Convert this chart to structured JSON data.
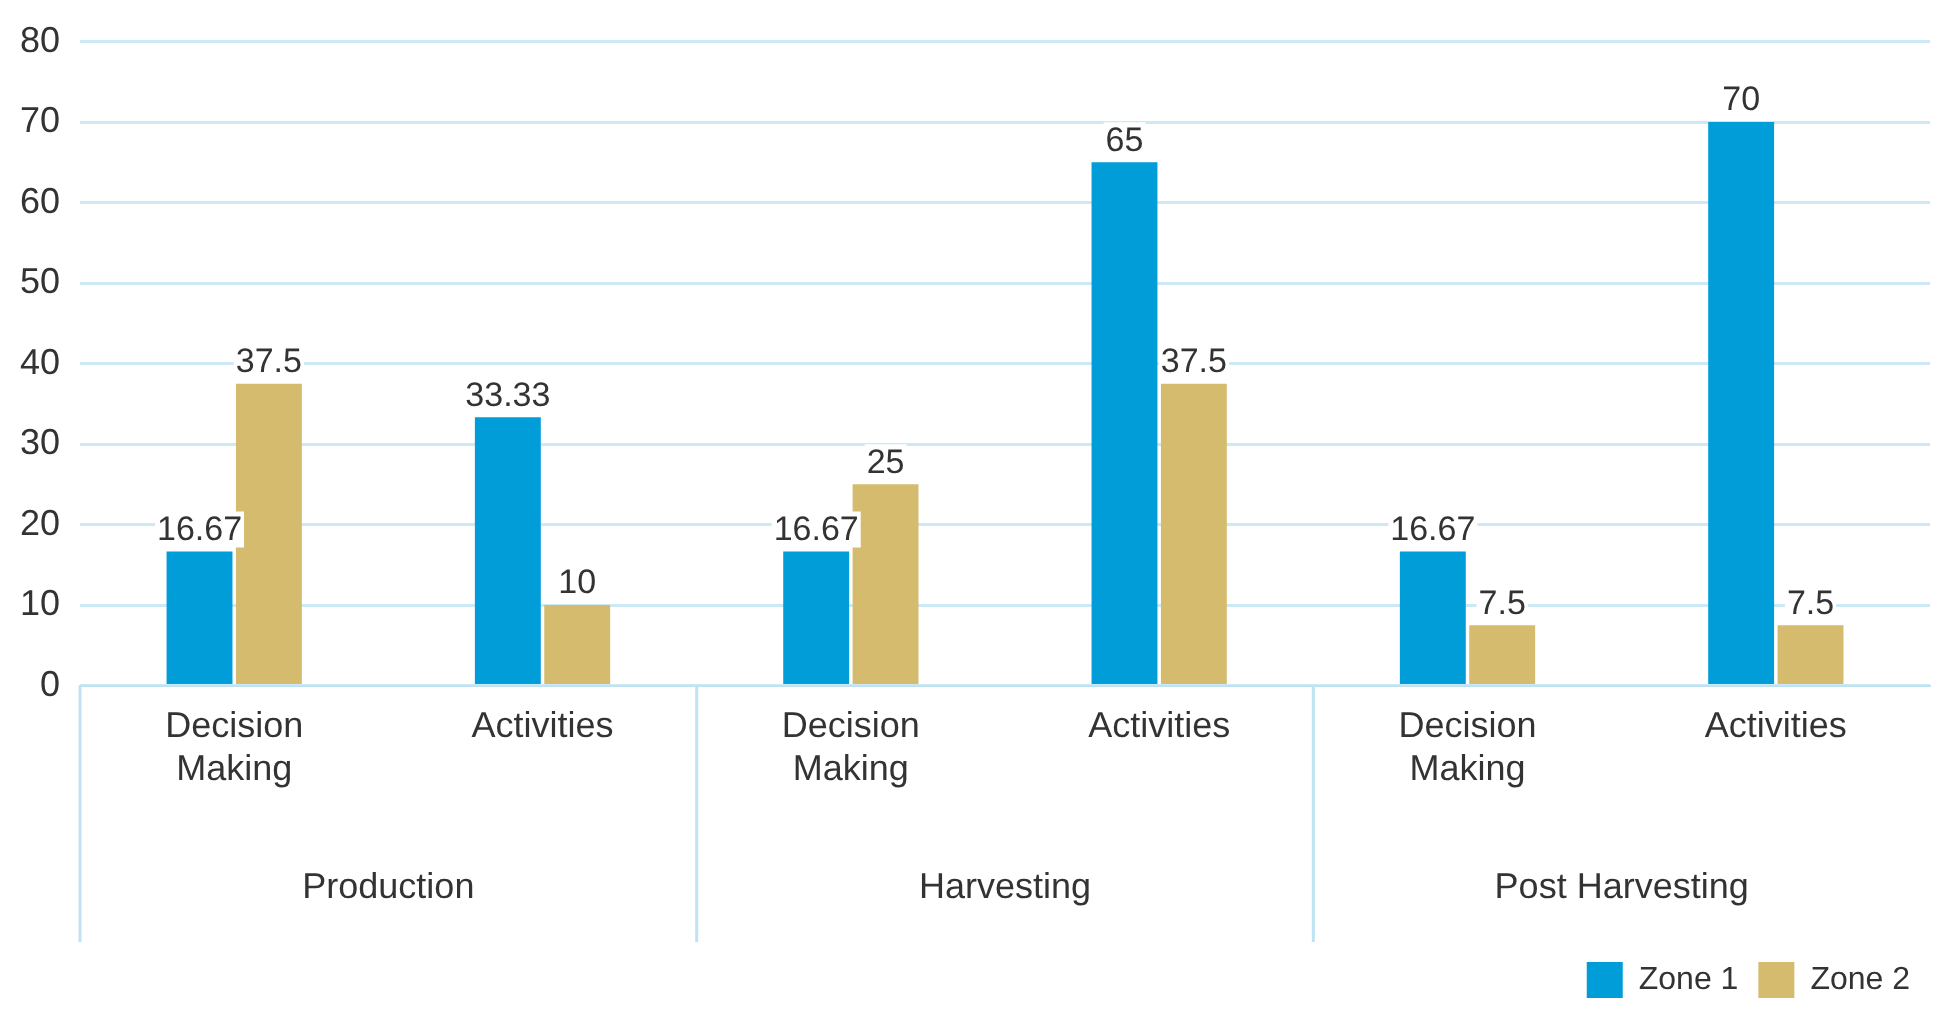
{
  "chart_data": {
    "type": "bar",
    "categories": [
      "Decision Making",
      "Activities",
      "Decision Making",
      "Activities",
      "Decision Making",
      "Activities"
    ],
    "series": [
      {
        "name": "Zone 1",
        "color": "#009dd9",
        "values": [
          16.67,
          33.33,
          16.67,
          65,
          16.67,
          70
        ]
      },
      {
        "name": "Zone 2",
        "color": "#d5bb6e",
        "values": [
          37.5,
          10,
          25,
          37.5,
          7.5,
          7.5
        ]
      }
    ],
    "annotations": [
      "Production",
      "Harvesting",
      "Post Harvesting"
    ],
    "ylim": [
      0,
      80
    ],
    "yticks": [
      0,
      10,
      20,
      30,
      40,
      50,
      60,
      70,
      80
    ],
    "grid": "y",
    "legend": "bottom right",
    "data_labels": true
  }
}
